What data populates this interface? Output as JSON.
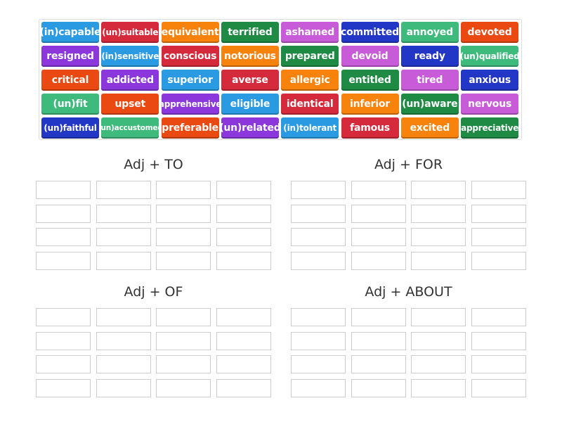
{
  "colors": {
    "blue": "#2a9be3",
    "red": "#d42a3c",
    "orange": "#f7820c",
    "green": "#1f8a44",
    "purple": "#8b37dc",
    "orangered": "#ea4a12",
    "teal": "#3fba7d",
    "pink": "#c85cd8",
    "navy": "#2337c6"
  },
  "tiles": [
    [
      "(in)capable",
      "blue"
    ],
    [
      "(un)suitable",
      "red"
    ],
    [
      "equivalent",
      "orange"
    ],
    [
      "terrified",
      "green"
    ],
    [
      "ashamed",
      "pink"
    ],
    [
      "committed",
      "navy"
    ],
    [
      "annoyed",
      "teal"
    ],
    [
      "devoted",
      "orangered"
    ],
    [
      "resigned",
      "purple"
    ],
    [
      "(in)sensitive",
      "blue"
    ],
    [
      "conscious",
      "red"
    ],
    [
      "notorious",
      "orange"
    ],
    [
      "prepared",
      "green"
    ],
    [
      "devoid",
      "pink"
    ],
    [
      "ready",
      "navy"
    ],
    [
      "(un)qualified",
      "teal"
    ],
    [
      "critical",
      "orangered"
    ],
    [
      "addicted",
      "purple"
    ],
    [
      "superior",
      "blue"
    ],
    [
      "averse",
      "red"
    ],
    [
      "allergic",
      "orange"
    ],
    [
      "entitled",
      "green"
    ],
    [
      "tired",
      "pink"
    ],
    [
      "anxious",
      "navy"
    ],
    [
      "(un)fit",
      "teal"
    ],
    [
      "upset",
      "orangered"
    ],
    [
      "apprehensive",
      "purple"
    ],
    [
      "eligible",
      "blue"
    ],
    [
      "identical",
      "red"
    ],
    [
      "inferior",
      "orange"
    ],
    [
      "(un)aware",
      "green"
    ],
    [
      "nervous",
      "pink"
    ],
    [
      "(un)faithful",
      "navy"
    ],
    [
      "(un)accustomed",
      "teal"
    ],
    [
      "preferable",
      "orangered"
    ],
    [
      "(un)related",
      "purple"
    ],
    [
      "(in)tolerant",
      "blue"
    ],
    [
      "famous",
      "red"
    ],
    [
      "excited",
      "orange"
    ],
    [
      "appreciative",
      "green"
    ]
  ],
  "groups": [
    {
      "title": "Adj + TO"
    },
    {
      "title": "Adj + FOR"
    },
    {
      "title": "Adj + OF"
    },
    {
      "title": "Adj + ABOUT"
    }
  ]
}
